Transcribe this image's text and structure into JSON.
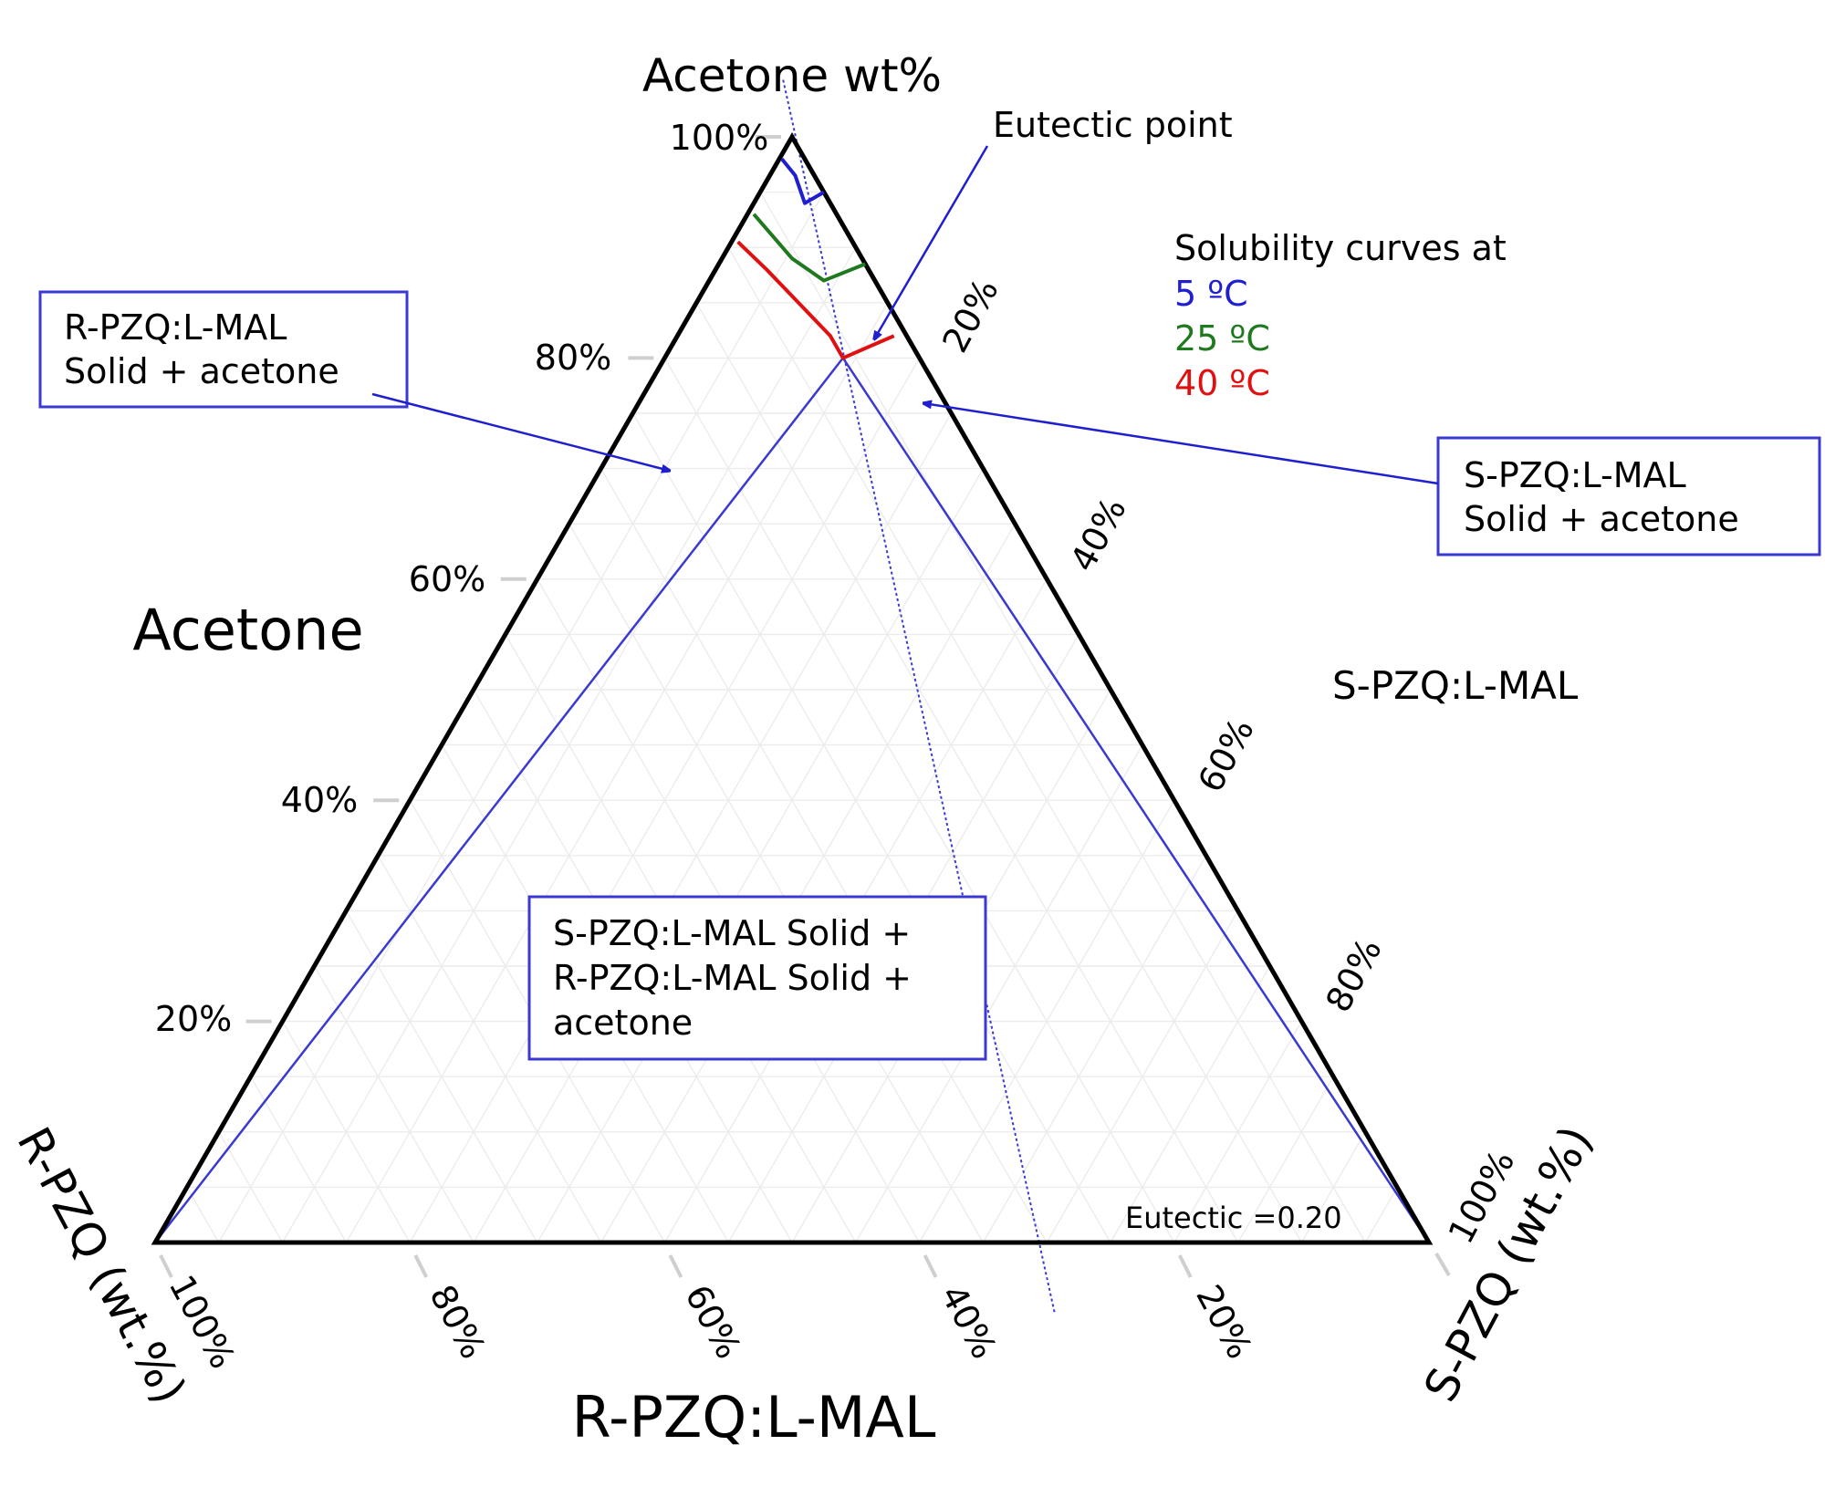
{
  "chart_data": {
    "type": "ternary",
    "axes": {
      "top": "Acetone wt%",
      "left_title": "Acetone",
      "bottom_left": "R-PZQ (wt.%)",
      "bottom_title": "R-PZQ:L-MAL",
      "bottom_right": "S-PZQ (wt.%)"
    },
    "ticks": {
      "left": [
        "100%",
        "80%",
        "60%",
        "40%",
        "20%"
      ],
      "right": [
        "20%",
        "40%",
        "60%",
        "80%",
        "100%"
      ],
      "bottom": [
        "100%",
        "80%",
        "60%",
        "40%",
        "20%"
      ]
    },
    "grid": true,
    "legend_title": "Solubility curves at",
    "series": [
      {
        "name": "5 ºC",
        "color": "#1f1fd0",
        "points": [
          {
            "acetone": 0.98,
            "s": 0.002
          },
          {
            "acetone": 0.965,
            "s": 0.02
          },
          {
            "acetone": 0.94,
            "s": 0.04
          },
          {
            "acetone": 0.95,
            "s": 0.05
          }
        ]
      },
      {
        "name": "25 ºC",
        "color": "#1f7a1f",
        "points": [
          {
            "acetone": 0.93,
            "s": 0.005
          },
          {
            "acetone": 0.91,
            "s": 0.03
          },
          {
            "acetone": 0.89,
            "s": 0.055
          },
          {
            "acetone": 0.87,
            "s": 0.09
          },
          {
            "acetone": 0.885,
            "s": 0.115
          }
        ]
      },
      {
        "name": "40 ºC",
        "color": "#e01010",
        "points": [
          {
            "acetone": 0.905,
            "s": 0.005
          },
          {
            "acetone": 0.88,
            "s": 0.04
          },
          {
            "acetone": 0.85,
            "s": 0.08
          },
          {
            "acetone": 0.82,
            "s": 0.12
          },
          {
            "acetone": 0.8,
            "s": 0.14
          },
          {
            "acetone": 0.82,
            "s": 0.17
          }
        ]
      }
    ],
    "eutectic": {
      "acetone": 0.8,
      "s": 0.14
    },
    "eutectic_label": "Eutectic =0.20",
    "annotations": {
      "eutectic_point": "Eutectic point",
      "s_solid_region": [
        "S-PZQ:L-MAL",
        "Solid + acetone"
      ],
      "r_solid_region": [
        "R-PZQ:L-MAL",
        "Solid + acetone"
      ],
      "three_phase_region": [
        "S-PZQ:L-MAL Solid +",
        "R-PZQ:L-MAL Solid +",
        "acetone"
      ],
      "s_corner_label": "S-PZQ:L-MAL"
    }
  }
}
